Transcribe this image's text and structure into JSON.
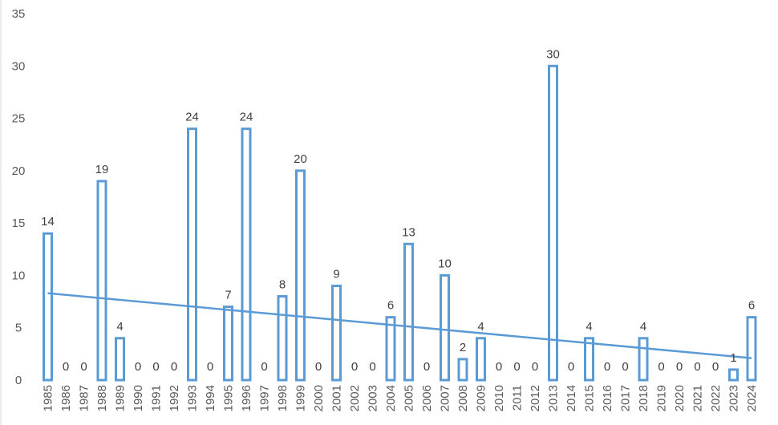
{
  "chart_data": {
    "type": "bar",
    "title": "",
    "xlabel": "",
    "ylabel": "",
    "ylim": [
      0,
      35
    ],
    "y_ticks": [
      0,
      5,
      10,
      15,
      20,
      25,
      30,
      35
    ],
    "grid": false,
    "legend": "none",
    "categories": [
      "1985",
      "1986",
      "1987",
      "1988",
      "1989",
      "1990",
      "1991",
      "1992",
      "1993",
      "1994",
      "1995",
      "1996",
      "1997",
      "1998",
      "1999",
      "2000",
      "2001",
      "2002",
      "2003",
      "2004",
      "2005",
      "2006",
      "2007",
      "2008",
      "2009",
      "2010",
      "2011",
      "2012",
      "2013",
      "2014",
      "2015",
      "2016",
      "2017",
      "2018",
      "2019",
      "2020",
      "2021",
      "2022",
      "2023",
      "2024"
    ],
    "series": [
      {
        "values": [
          14,
          0,
          0,
          19,
          4,
          0,
          0,
          0,
          24,
          0,
          7,
          24,
          0,
          8,
          20,
          0,
          9,
          0,
          0,
          6,
          13,
          0,
          10,
          2,
          4,
          0,
          0,
          0,
          30,
          0,
          4,
          0,
          0,
          4,
          0,
          0,
          0,
          0,
          1,
          6
        ]
      }
    ],
    "trendline": {
      "type": "linear",
      "start": 8.3,
      "end": 2.1
    },
    "colors": {
      "bar_stroke": "#5B9BD5",
      "trendline": "#5B9BD5"
    }
  }
}
